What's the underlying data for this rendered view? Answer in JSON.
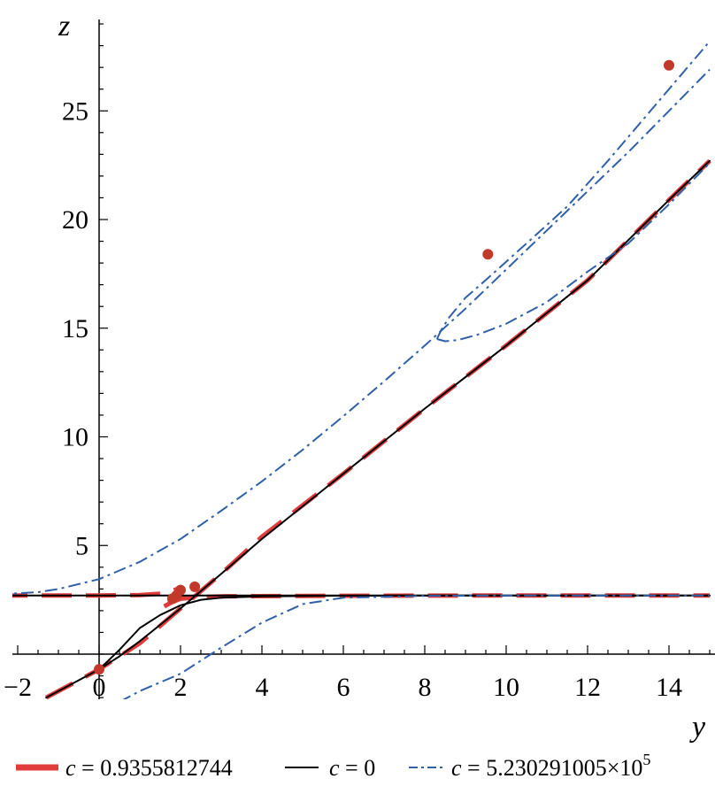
{
  "chart_data": {
    "type": "line",
    "title": "",
    "xlabel": "y",
    "ylabel": "z",
    "xlim": [
      -2.5,
      15.1
    ],
    "ylim": [
      -2.2,
      29.2
    ],
    "x_ticks": [
      -2,
      0,
      2,
      4,
      6,
      8,
      10,
      12,
      14
    ],
    "x_tick_labels": [
      "−2",
      "0",
      "2",
      "4",
      "6",
      "8",
      "10",
      "12",
      "14"
    ],
    "y_ticks": [
      5,
      10,
      15,
      20,
      25
    ],
    "y_tick_labels": [
      "5",
      "10",
      "15",
      "20",
      "25"
    ],
    "grid": false,
    "legend_position": "bottom",
    "series": [
      {
        "legend_c": "0.9355812744",
        "legend_exp": "",
        "color": "#e03c3c",
        "style": "dashed-thick",
        "branches": [
          [
            [
              -1.3,
              -2.0
            ],
            [
              -0.5,
              -1.2
            ],
            [
              0,
              -0.7
            ],
            [
              1,
              0.5
            ],
            [
              2,
              2.1
            ],
            [
              3,
              3.7
            ],
            [
              4,
              5.4
            ],
            [
              6,
              8.3
            ],
            [
              8,
              11.3
            ],
            [
              10,
              14.2
            ],
            [
              12,
              17.2
            ],
            [
              14,
              20.9
            ],
            [
              15,
              22.7
            ]
          ],
          [
            [
              -2.5,
              2.7
            ],
            [
              0,
              2.7
            ],
            [
              1,
              2.72
            ],
            [
              1.5,
              2.78
            ],
            [
              1.8,
              2.92
            ],
            [
              2.0,
              3.05
            ]
          ],
          [
            [
              1.6,
              2.2
            ],
            [
              1.8,
              2.4
            ],
            [
              2.0,
              2.55
            ],
            [
              2.5,
              2.63
            ],
            [
              3,
              2.66
            ],
            [
              5,
              2.68
            ],
            [
              10,
              2.7
            ],
            [
              15,
              2.7
            ]
          ]
        ]
      },
      {
        "legend_c": "0",
        "legend_exp": "",
        "color": "#000000",
        "style": "solid",
        "branches": [
          [
            [
              -1.3,
              -2.0
            ],
            [
              -0.5,
              -1.2
            ],
            [
              0,
              -0.7
            ],
            [
              0.5,
              -0.1
            ],
            [
              1,
              0.6
            ],
            [
              1.5,
              1.35
            ],
            [
              2,
              2.1
            ],
            [
              2.5,
              2.9
            ],
            [
              3,
              3.7
            ],
            [
              4,
              5.3
            ],
            [
              6,
              8.3
            ],
            [
              8,
              11.3
            ],
            [
              10,
              14.2
            ],
            [
              12,
              17.2
            ],
            [
              14,
              20.9
            ],
            [
              15,
              22.7
            ]
          ],
          [
            [
              -2.5,
              2.7
            ],
            [
              15,
              2.7
            ]
          ],
          [
            [
              0,
              -0.7
            ],
            [
              0.5,
              0.2
            ],
            [
              1,
              1.2
            ],
            [
              1.5,
              1.8
            ],
            [
              2,
              2.25
            ],
            [
              2.5,
              2.5
            ],
            [
              3,
              2.6
            ],
            [
              4,
              2.66
            ],
            [
              6,
              2.69
            ],
            [
              10,
              2.7
            ],
            [
              15,
              2.7
            ]
          ]
        ]
      },
      {
        "legend_c": "5.230291005",
        "legend_exp": "5",
        "color": "#3060a8",
        "style": "dashdot",
        "branches": [
          [
            [
              -2.5,
              2.75
            ],
            [
              -1.5,
              2.85
            ],
            [
              -1,
              3.0
            ],
            [
              0,
              3.45
            ],
            [
              1,
              4.25
            ],
            [
              2,
              5.3
            ],
            [
              3,
              6.6
            ],
            [
              4,
              7.95
            ],
            [
              5,
              9.4
            ],
            [
              6,
              10.95
            ],
            [
              7,
              12.55
            ],
            [
              8,
              14.2
            ],
            [
              9,
              15.9
            ],
            [
              10,
              17.7
            ],
            [
              11,
              19.5
            ],
            [
              12,
              21.3
            ],
            [
              13,
              23.1
            ],
            [
              14,
              25.0
            ],
            [
              15,
              26.9
            ]
          ],
          [
            [
              8.3,
              14.5
            ],
            [
              8.4,
              14.9
            ],
            [
              8.6,
              15.5
            ],
            [
              9.0,
              16.4
            ],
            [
              9.55,
              17.3
            ],
            [
              10.5,
              18.9
            ],
            [
              11.5,
              20.6
            ],
            [
              12.5,
              22.7
            ],
            [
              13.5,
              24.9
            ],
            [
              14.0,
              26.0
            ],
            [
              15,
              28.2
            ]
          ],
          [
            [
              8.3,
              14.5
            ],
            [
              8.5,
              14.4
            ],
            [
              8.8,
              14.45
            ],
            [
              9.3,
              14.7
            ],
            [
              10,
              15.2
            ],
            [
              11,
              16.2
            ],
            [
              12,
              17.6
            ],
            [
              13,
              18.9
            ],
            [
              14,
              20.7
            ],
            [
              15,
              22.6
            ]
          ],
          [
            [
              0.5,
              -2.2
            ],
            [
              1,
              -1.7
            ],
            [
              2,
              -0.9
            ],
            [
              3,
              0.3
            ],
            [
              4,
              1.45
            ],
            [
              5,
              2.3
            ],
            [
              6,
              2.6
            ],
            [
              8,
              2.68
            ],
            [
              10,
              2.7
            ],
            [
              15,
              2.7
            ]
          ]
        ]
      }
    ],
    "points": [
      [
        0,
        -0.7
      ],
      [
        1.8,
        2.55
      ],
      [
        1.9,
        2.7
      ],
      [
        2.0,
        2.95
      ],
      [
        2.35,
        3.1
      ],
      [
        9.55,
        18.4
      ],
      [
        14,
        27.1
      ]
    ],
    "point_color": "#c0392b"
  }
}
